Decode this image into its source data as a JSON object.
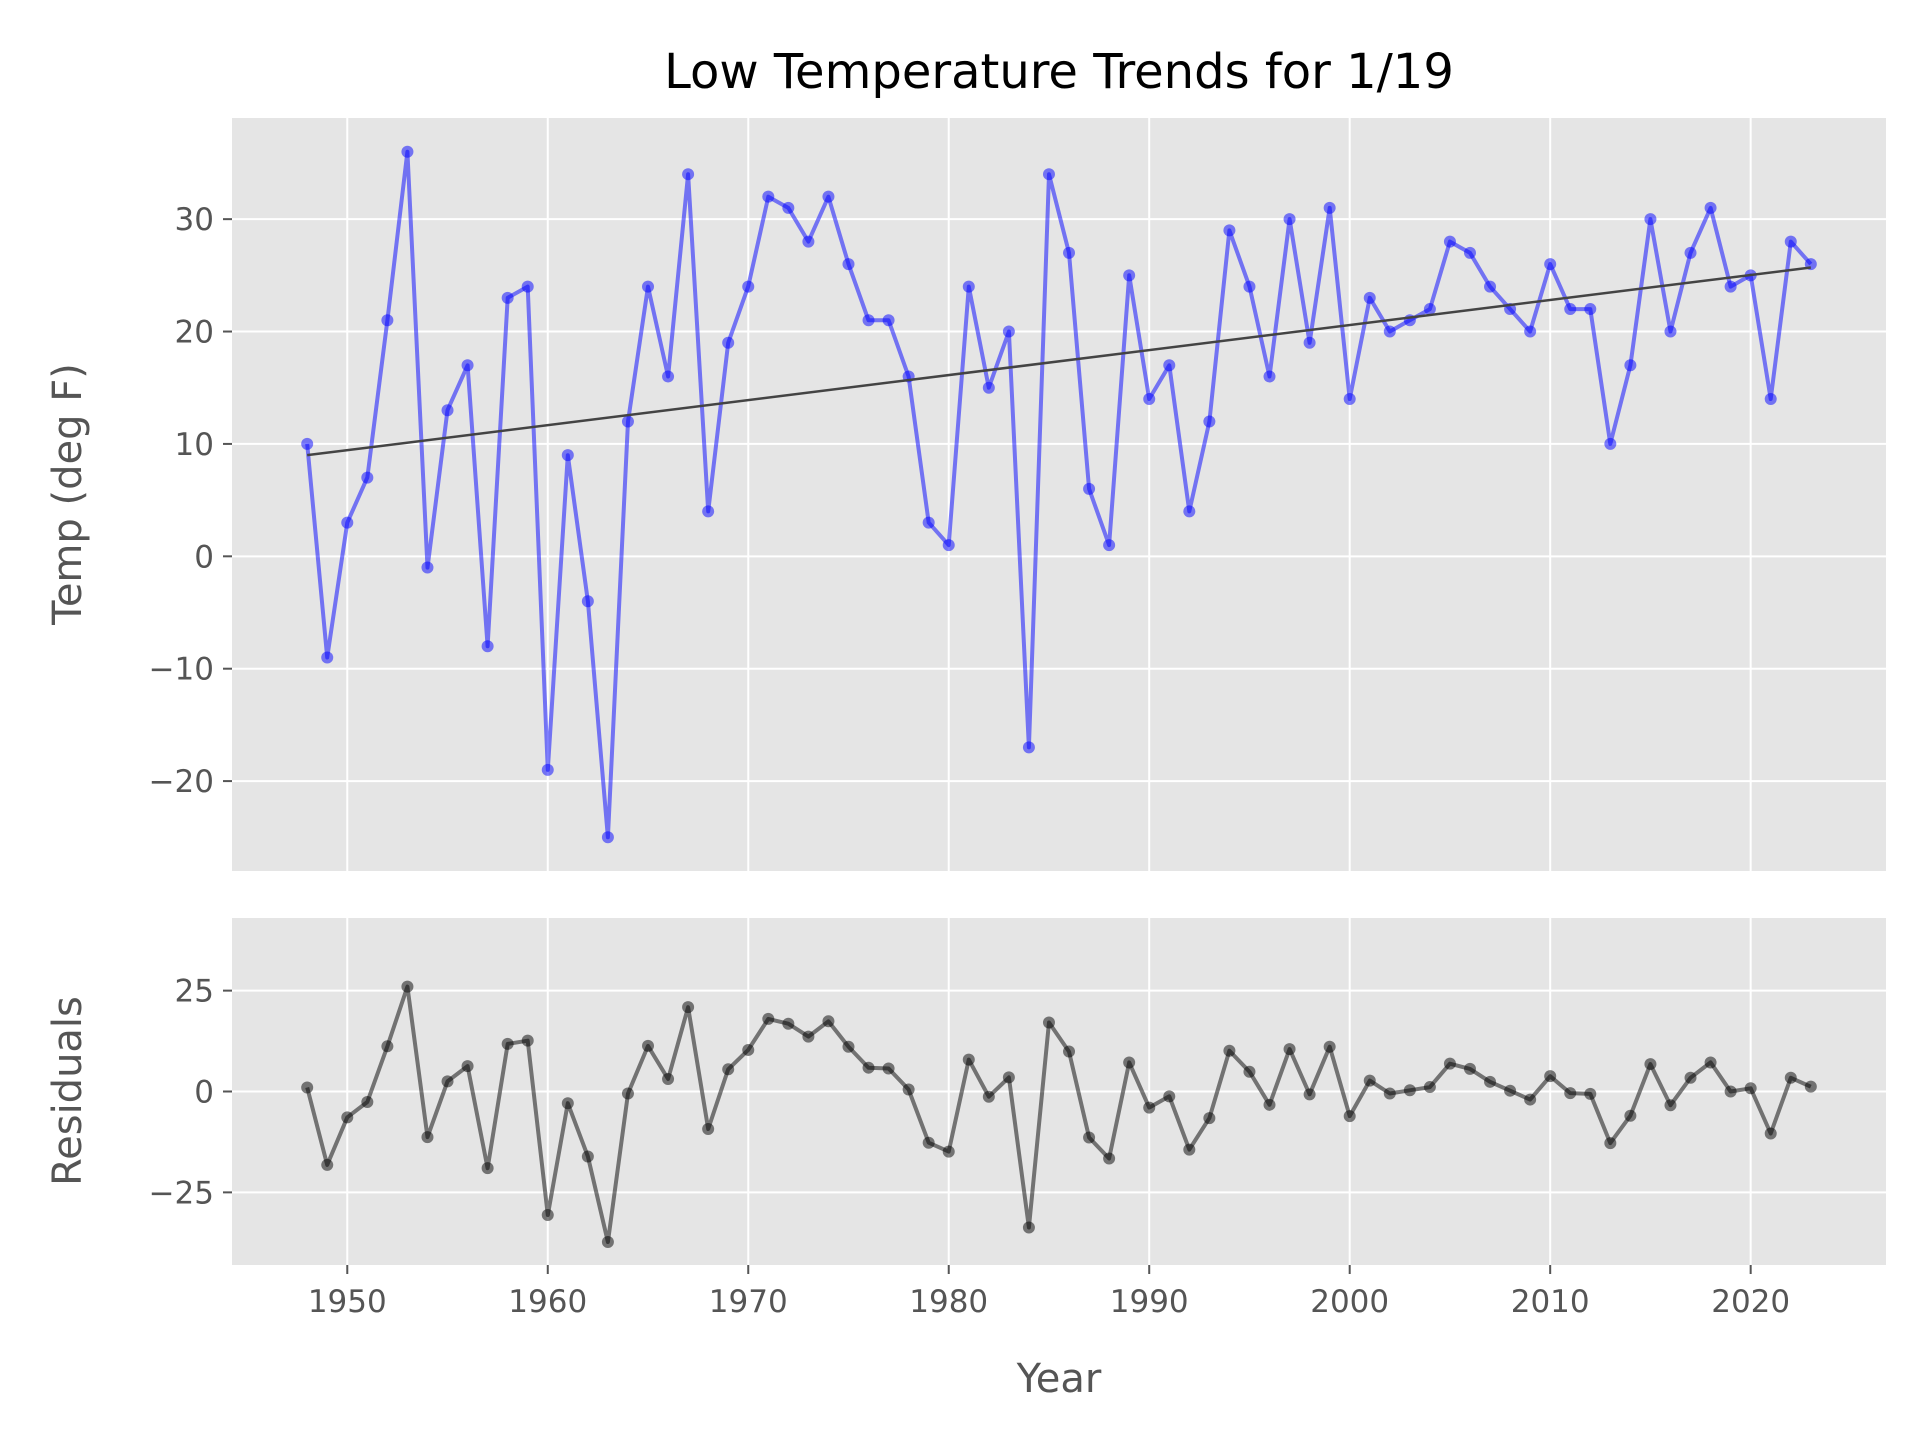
{
  "chart_data": [
    {
      "type": "line",
      "title": "Low Temperature Trends for 1/19",
      "xlabel": "",
      "ylabel": "Temp (deg F)",
      "xlim": [
        1944.25,
        2026.75
      ],
      "ylim": [
        -28,
        39
      ],
      "yticks": [
        30,
        20,
        10,
        0,
        -10,
        -20
      ],
      "ytick_labels": [
        "30",
        "20",
        "10",
        "0",
        "−10",
        "−20"
      ],
      "grid": true,
      "background_color": "#e5e5e5",
      "series": [
        {
          "name": "Low temperature",
          "color": "#0000ff",
          "x": [
            1948,
            1949,
            1950,
            1951,
            1952,
            1953,
            1954,
            1955,
            1956,
            1957,
            1958,
            1959,
            1960,
            1961,
            1962,
            1963,
            1964,
            1965,
            1966,
            1967,
            1968,
            1969,
            1970,
            1971,
            1972,
            1973,
            1974,
            1975,
            1976,
            1977,
            1978,
            1979,
            1980,
            1981,
            1982,
            1983,
            1984,
            1985,
            1986,
            1987,
            1988,
            1989,
            1990,
            1991,
            1992,
            1993,
            1994,
            1995,
            1996,
            1997,
            1998,
            1999,
            2000,
            2001,
            2002,
            2003,
            2004,
            2005,
            2006,
            2007,
            2008,
            2009,
            2010,
            2011,
            2012,
            2013,
            2014,
            2015,
            2016,
            2017,
            2018,
            2019,
            2020,
            2021,
            2022,
            2023
          ],
          "y": [
            10,
            -9,
            3,
            7,
            21,
            36,
            -1,
            13,
            17,
            -8,
            23,
            24,
            -19,
            9,
            -4,
            -25,
            12,
            24,
            16,
            34,
            4,
            19,
            24,
            32,
            31,
            28,
            32,
            26,
            21,
            21,
            16,
            3,
            1,
            24,
            15,
            20,
            -17,
            34,
            27,
            6,
            1,
            25,
            14,
            17,
            4,
            12,
            29,
            24,
            16,
            30,
            19,
            31,
            14,
            23,
            20,
            21,
            22,
            28,
            27,
            24,
            22,
            20,
            26,
            22,
            22,
            10,
            17,
            30,
            20,
            27,
            31,
            24,
            25,
            14,
            28,
            26
          ]
        },
        {
          "name": "Linear trend",
          "color": "#444444",
          "x": [
            1948,
            2023
          ],
          "y": [
            9.0,
            25.7
          ]
        }
      ]
    },
    {
      "type": "line",
      "title": "",
      "xlabel": "Year",
      "ylabel": "Residuals",
      "xlim": [
        1944.25,
        2026.75
      ],
      "ylim": [
        -43,
        43
      ],
      "yticks": [
        25,
        0,
        -25
      ],
      "ytick_labels": [
        "25",
        "0",
        "−25"
      ],
      "xticks": [
        1950,
        1960,
        1970,
        1980,
        1990,
        2000,
        2010,
        2020
      ],
      "xtick_labels": [
        "1950",
        "1960",
        "1970",
        "1980",
        "1990",
        "2000",
        "2010",
        "2020"
      ],
      "grid": true,
      "background_color": "#e5e5e5",
      "series": [
        {
          "name": "Residuals",
          "color": "#000000",
          "x": [
            1948,
            1949,
            1950,
            1951,
            1952,
            1953,
            1954,
            1955,
            1956,
            1957,
            1958,
            1959,
            1960,
            1961,
            1962,
            1963,
            1964,
            1965,
            1966,
            1967,
            1968,
            1969,
            1970,
            1971,
            1972,
            1973,
            1974,
            1975,
            1976,
            1977,
            1978,
            1979,
            1980,
            1981,
            1982,
            1983,
            1984,
            1985,
            1986,
            1987,
            1988,
            1989,
            1990,
            1991,
            1992,
            1993,
            1994,
            1995,
            1996,
            1997,
            1998,
            1999,
            2000,
            2001,
            2002,
            2003,
            2004,
            2005,
            2006,
            2007,
            2008,
            2009,
            2010,
            2011,
            2012,
            2013,
            2014,
            2015,
            2016,
            2017,
            2018,
            2019,
            2020,
            2021,
            2022,
            2023
          ],
          "y": [
            1,
            -18.2,
            -6.4,
            -2.6,
            11.2,
            26,
            -11.3,
            2.5,
            6.3,
            -19,
            11.8,
            12.6,
            -30.6,
            -2.9,
            -16.1,
            -37.3,
            -0.5,
            11.3,
            3.1,
            20.9,
            -9.3,
            5.5,
            10.3,
            18,
            16.8,
            13.6,
            17.4,
            11.1,
            5.9,
            5.7,
            0.5,
            -12.7,
            -14.9,
            7.9,
            -1.3,
            3.5,
            -33.7,
            17.1,
            9.9,
            -11.4,
            -16.6,
            7.2,
            -4,
            -1.2,
            -14.4,
            -6.6,
            10.1,
            4.9,
            -3.3,
            10.5,
            -0.7,
            11.1,
            -6.1,
            2.7,
            -0.5,
            0.3,
            1.1,
            6.9,
            5.6,
            2.4,
            0.2,
            -2,
            3.8,
            -0.4,
            -0.6,
            -12.8,
            -6,
            6.8,
            -3.4,
            3.4,
            7.2,
            0,
            0.8,
            -10.4,
            3.4,
            1.2
          ]
        }
      ]
    }
  ]
}
